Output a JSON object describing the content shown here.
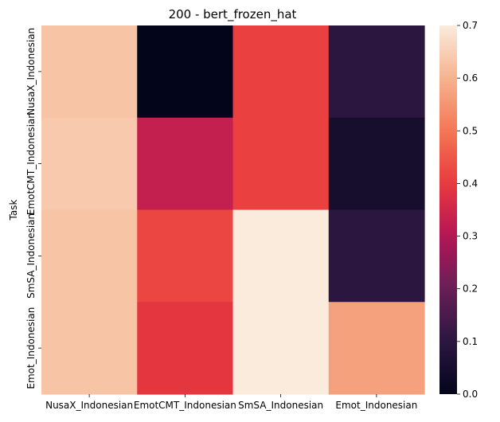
{
  "chart_data": {
    "type": "heatmap",
    "title": "200 - bert_frozen_hat",
    "xlabel": "",
    "ylabel": "Task",
    "x_categories": [
      "NusaX_Indonesian",
      "EmotCMT_Indonesian",
      "SmSA_Indonesian",
      "Emot_Indonesian"
    ],
    "y_categories": [
      "NusaX_Indonesian",
      "EmotCMT_Indonesian",
      "SmSA_Indonesian",
      "Emot_Indonesian"
    ],
    "values": [
      [
        0.63,
        0.0,
        0.41,
        0.1
      ],
      [
        0.64,
        0.33,
        0.41,
        0.05
      ],
      [
        0.63,
        0.42,
        0.7,
        0.1
      ],
      [
        0.63,
        0.39,
        0.7,
        0.57
      ]
    ],
    "colorbar": {
      "min": 0.0,
      "max": 0.7,
      "ticks": [
        "0.0",
        "0.1",
        "0.2",
        "0.3",
        "0.4",
        "0.5",
        "0.6",
        "0.7"
      ],
      "colormap": "rocket",
      "placement": "right"
    },
    "grid": false
  }
}
